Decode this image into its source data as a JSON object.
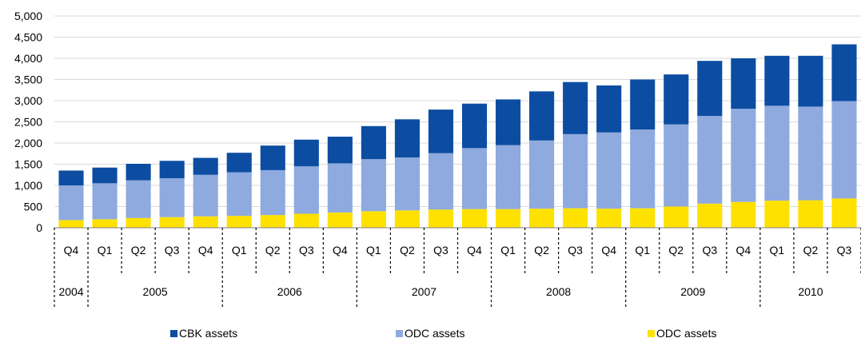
{
  "chart_data": {
    "type": "bar",
    "stacked": true,
    "title": "",
    "xlabel": "",
    "ylabel": "",
    "ylim": [
      0,
      5000
    ],
    "yticks": [
      0,
      500,
      1000,
      1500,
      2000,
      2500,
      3000,
      3500,
      4000,
      4500,
      5000
    ],
    "grid": true,
    "legend_position": "bottom",
    "categories": [
      "Q4",
      "Q1",
      "Q2",
      "Q3",
      "Q4",
      "Q1",
      "Q2",
      "Q3",
      "Q4",
      "Q1",
      "Q2",
      "Q3",
      "Q4",
      "Q1",
      "Q2",
      "Q3",
      "Q4",
      "Q1",
      "Q2",
      "Q3",
      "Q4",
      "Q1",
      "Q2",
      "Q3"
    ],
    "years": [
      {
        "label": "2004",
        "count": 1
      },
      {
        "label": "2005",
        "count": 4
      },
      {
        "label": "2006",
        "count": 4
      },
      {
        "label": "2007",
        "count": 4
      },
      {
        "label": "2008",
        "count": 4
      },
      {
        "label": "2009",
        "count": 4
      },
      {
        "label": "2010",
        "count": 3
      }
    ],
    "series": [
      {
        "name": "ODC assets",
        "color": "#FFE100",
        "values": [
          180,
          200,
          230,
          250,
          270,
          280,
          300,
          330,
          360,
          390,
          410,
          430,
          440,
          440,
          450,
          460,
          450,
          460,
          500,
          570,
          610,
          640,
          650,
          690
        ]
      },
      {
        "name": "ODC assets",
        "color": "#8EAADF",
        "values": [
          820,
          850,
          890,
          920,
          980,
          1030,
          1060,
          1120,
          1160,
          1230,
          1250,
          1330,
          1440,
          1510,
          1610,
          1750,
          1800,
          1860,
          1940,
          2070,
          2200,
          2240,
          2210,
          2300
        ]
      },
      {
        "name": "CBK assets",
        "color": "#0C4DA2",
        "values": [
          350,
          370,
          390,
          410,
          400,
          460,
          580,
          630,
          630,
          780,
          900,
          1030,
          1050,
          1080,
          1160,
          1230,
          1110,
          1180,
          1180,
          1300,
          1190,
          1180,
          1200,
          1340
        ]
      }
    ],
    "legend_order": [
      2,
      1,
      0
    ]
  }
}
